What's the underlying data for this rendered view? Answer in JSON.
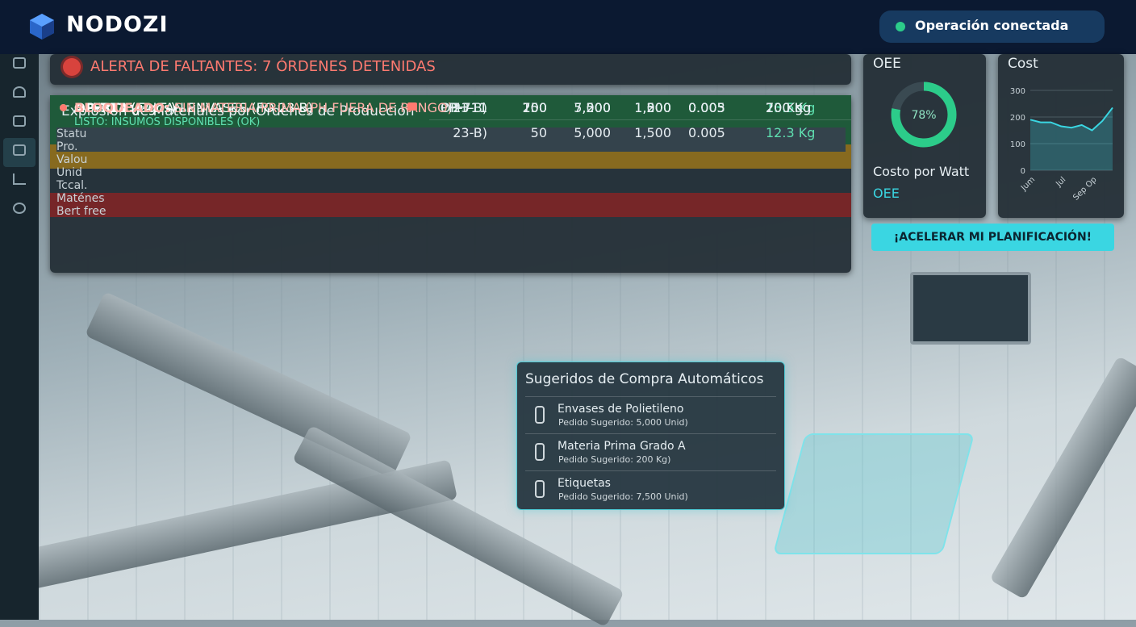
{
  "header": {
    "brand": "NODOZI",
    "status": "Operación conectada"
  },
  "alert": "ALERTA DE FALTANTES: 7 ÓRDENES DETENIDAS",
  "table": {
    "title": "Explosión de Materiales por Órdenes de Producción",
    "columns": [
      "Statu",
      "Pro.",
      "Valou",
      "Unid",
      "Tccal.",
      "Maténes",
      "Bert free"
    ],
    "rows": [
      {
        "lead": "OP-711",
        "text": "(Jugos)",
        "sub": "LISTO: INSUMOS DISPONIBLES (OK)",
        "color": "#1f5a3a",
        "dot": "#2ccc8a",
        "lines": [
          [
            "OP-711",
            "100",
            "5,000",
            "1,500",
            "0.003",
            "13.5 Kg"
          ],
          [
            "23-B)",
            "50",
            "5,000",
            "1,500",
            "0.005",
            "12.3 Kg"
          ]
        ]
      },
      {
        "lead": "ALERTA:",
        "text": "FALTAN ENVASES (PO 23-B)",
        "color": "#876a1f",
        "dot": "#e7c15a",
        "lines": [
          [
            "23-B)",
            "200",
            "500",
            "1,000",
            "0.005",
            "200 Kg"
          ]
        ]
      },
      {
        "lead": "OP-711",
        "text": "(Jugos)",
        "color": "#26333b",
        "dot": "#2ccc8a",
        "lines": [
          [
            "PH-711",
            "50",
            "200",
            "200",
            "0.005",
            "20 Kg"
          ]
        ]
      },
      {
        "lead": "BLOQUEADO:",
        "text": "SIN MATERIA PRIMA (PH FUERA DE RANGO)",
        "color": "#762628",
        "dot": "#ff7a70",
        "lines": [
          [
            "PH-11",
            "700",
            "7,500",
            "300",
            "0.005",
            "700 Kg"
          ]
        ]
      }
    ]
  },
  "oee": {
    "title": "OEE",
    "value": 78,
    "value_label": "78%",
    "metric": "Costo por Watt",
    "metric_sub": "OEE"
  },
  "cost": {
    "title": "Cost",
    "ylim": [
      0,
      300
    ],
    "yticks": [
      0,
      100,
      200,
      300
    ],
    "categories": [
      "Jum",
      null,
      null,
      "Jul",
      null,
      null,
      "Sep Op",
      null,
      null
    ],
    "values": [
      190,
      180,
      180,
      165,
      160,
      170,
      150,
      185,
      235
    ]
  },
  "button": "¡ACELERAR MI PLANIFICACIÓN!",
  "suggestions": {
    "title": "Sugeridos de Compra Automáticos",
    "items": [
      {
        "name": "Envases de Polietileno",
        "detail": "Pedido Sugerido: 5,000 Unid)"
      },
      {
        "name": "Materia Prima Grado A",
        "detail": "Pedido Sugerido: 200 Kg)"
      },
      {
        "name": "Etiquetas",
        "detail": "Pedido Sugerido: 7,500 Unid)"
      }
    ]
  }
}
